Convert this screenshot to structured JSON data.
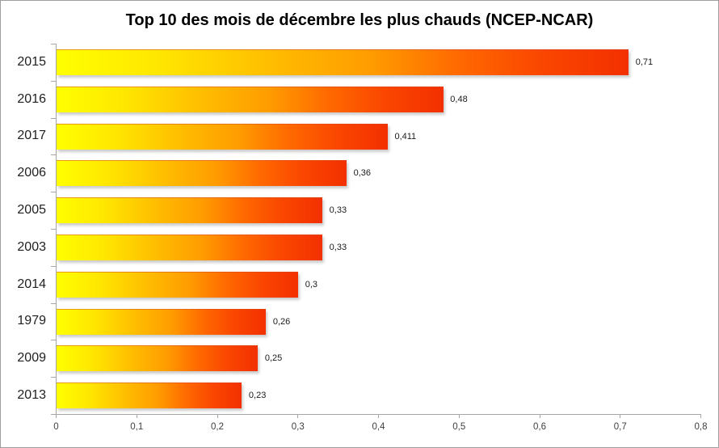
{
  "chart_data": {
    "type": "bar",
    "orientation": "horizontal",
    "title": "Top 10 des mois de décembre les plus chauds (NCEP-NCAR)",
    "categories": [
      "2015",
      "2016",
      "2017",
      "2006",
      "2005",
      "2003",
      "2014",
      "1979",
      "2009",
      "2013"
    ],
    "values": [
      0.71,
      0.48,
      0.411,
      0.36,
      0.33,
      0.33,
      0.3,
      0.26,
      0.25,
      0.23
    ],
    "value_labels": [
      "0,71",
      "0,48",
      "0,411",
      "0,36",
      "0,33",
      "0,33",
      "0,3",
      "0,26",
      "0,25",
      "0,23"
    ],
    "xlabel": "",
    "ylabel": "",
    "xlim": [
      0,
      0.8
    ],
    "x_tick_values": [
      0,
      0.1,
      0.2,
      0.3,
      0.4,
      0.5,
      0.6,
      0.7,
      0.8
    ],
    "x_tick_labels": [
      "0",
      "0,1",
      "0,2",
      "0,3",
      "0,4",
      "0,5",
      "0,6",
      "0,7",
      "0,8"
    ],
    "grid": false,
    "legend": "none",
    "bar_gradient_stops": [
      "#FFFF00",
      "#FFE600",
      "#FFB800",
      "#FF9C00",
      "#FF6A00",
      "#FA4600",
      "#F33000"
    ]
  },
  "colors": {
    "background": "#FFFFFF",
    "frame_border": "#9E9E9E",
    "axis_line": "#A6A6A6",
    "title_text": "#000000",
    "category_text": "#1F1F1F",
    "value_text": "#1A1A1A",
    "x_tick_text": "#3F3F3F",
    "bar_top_edge": "#D24B1E"
  }
}
